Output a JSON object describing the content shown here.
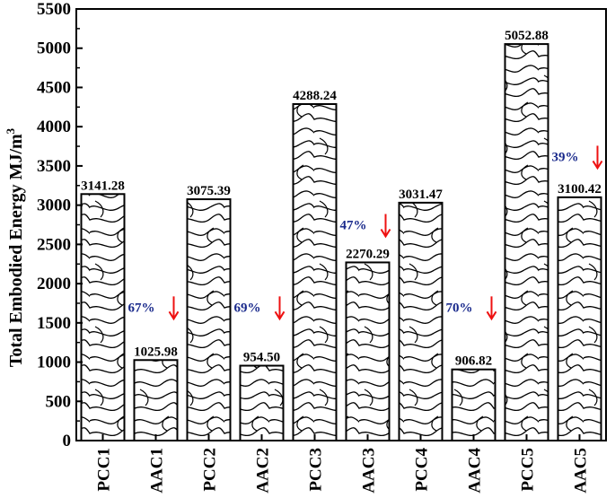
{
  "chart_data": {
    "type": "bar",
    "categories": [
      "PCC1",
      "AAC1",
      "PCC2",
      "AAC2",
      "PCC3",
      "AAC3",
      "PCC4",
      "AAC4",
      "PCC5",
      "AAC5"
    ],
    "values": [
      3141.28,
      1025.98,
      3075.39,
      954.5,
      4288.24,
      2270.29,
      3031.47,
      906.82,
      5052.88,
      3100.42
    ],
    "value_labels": [
      "3141.28",
      "1025.98",
      "3075.39",
      "954.50",
      "4288.24",
      "2270.29",
      "3031.47",
      "906.82",
      "5052.88",
      "3100.42"
    ],
    "ylabel": "Total Embodied Energy MJ/m",
    "ylabel_superscript": "3",
    "ylim": [
      0,
      5500
    ],
    "yticks": [
      0,
      500,
      1000,
      1500,
      2000,
      2500,
      3000,
      3500,
      4000,
      4500,
      5000,
      5500
    ],
    "yticks_labels": [
      "0",
      "500",
      "1000",
      "1500",
      "2000",
      "2500",
      "3000",
      "3500",
      "4000",
      "4500",
      "5000",
      "5500"
    ],
    "reductions": [
      {
        "category": "AAC1",
        "label": "67%",
        "y": 1700
      },
      {
        "category": "AAC2",
        "label": "69%",
        "y": 1700
      },
      {
        "category": "AAC3",
        "label": "47%",
        "y": 2750
      },
      {
        "category": "AAC4",
        "label": "70%",
        "y": 1700
      },
      {
        "category": "AAC5",
        "label": "39%",
        "y": 3620
      }
    ],
    "bar_pattern": "wavy-contour-hatch",
    "grid": false,
    "colors": {
      "bar_fill": "#ffffff",
      "bar_edge": "#000000",
      "pattern_line": "#000000",
      "percent_text": "#1a2a8c",
      "arrow": "#ee1111"
    }
  }
}
